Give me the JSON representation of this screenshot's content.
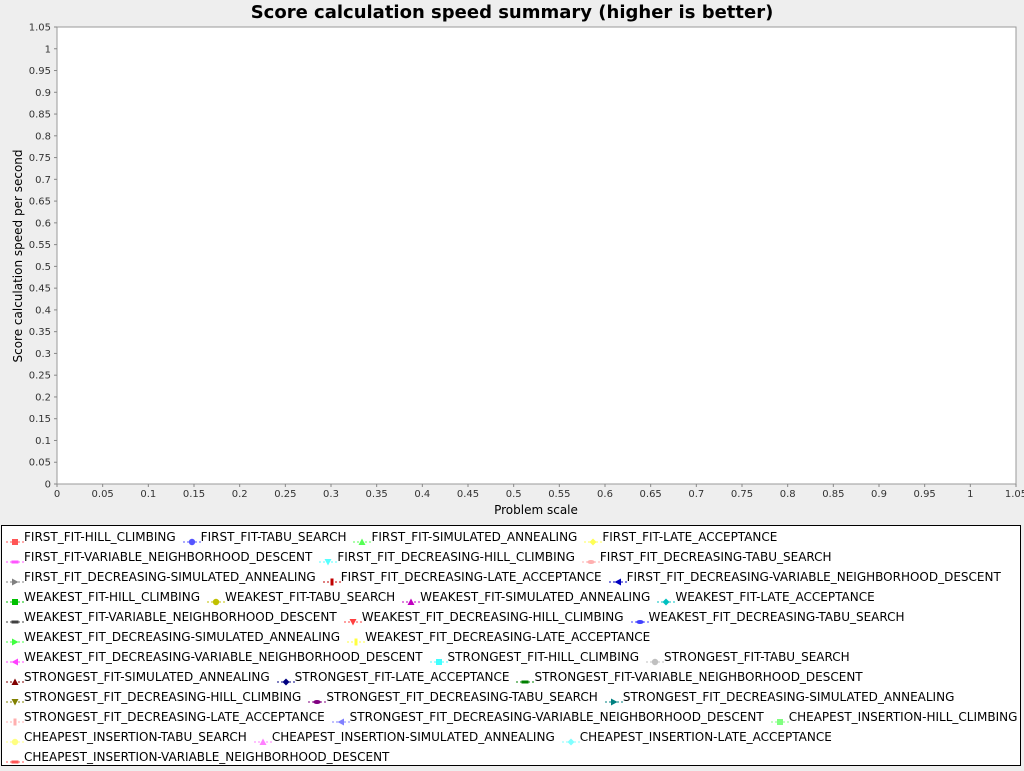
{
  "chart_data": {
    "type": "line",
    "title": "Score calculation speed summary (higher is better)",
    "xlabel": "Problem scale",
    "ylabel": "Score calculation speed per second",
    "xlim": [
      0,
      1.05
    ],
    "ylim": [
      0,
      1.05
    ],
    "x_ticks": [
      "0",
      "0.05",
      "0.1",
      "0.15",
      "0.2",
      "0.25",
      "0.3",
      "0.35",
      "0.4",
      "0.45",
      "0.5",
      "0.55",
      "0.6",
      "0.65",
      "0.7",
      "0.75",
      "0.8",
      "0.85",
      "0.9",
      "0.95",
      "1",
      "1.05"
    ],
    "y_ticks": [
      "0",
      "0.05",
      "0.1",
      "0.15",
      "0.2",
      "0.25",
      "0.3",
      "0.35",
      "0.4",
      "0.45",
      "0.5",
      "0.55",
      "0.6",
      "0.65",
      "0.7",
      "0.75",
      "0.8",
      "0.85",
      "0.9",
      "0.95",
      "1",
      "1.05"
    ],
    "grid": true,
    "legend_position": "bottom",
    "series": [
      {
        "name": "FIRST_FIT-HILL_CLIMBING",
        "color": "#ff5555",
        "marker": "square",
        "values": []
      },
      {
        "name": "FIRST_FIT-TABU_SEARCH",
        "color": "#5555ff",
        "marker": "circle",
        "values": []
      },
      {
        "name": "FIRST_FIT-SIMULATED_ANNEALING",
        "color": "#55ff55",
        "marker": "triangle-up",
        "values": []
      },
      {
        "name": "FIRST_FIT-LATE_ACCEPTANCE",
        "color": "#ffff55",
        "marker": "diamond",
        "values": []
      },
      {
        "name": "FIRST_FIT-VARIABLE_NEIGHBORHOOD_DESCENT",
        "color": "#ff55ff",
        "marker": "rect-h",
        "values": []
      },
      {
        "name": "FIRST_FIT_DECREASING-HILL_CLIMBING",
        "color": "#55ffff",
        "marker": "triangle-down",
        "values": []
      },
      {
        "name": "FIRST_FIT_DECREASING-TABU_SEARCH",
        "color": "#ffafaf",
        "marker": "ellipse",
        "values": []
      },
      {
        "name": "FIRST_FIT_DECREASING-SIMULATED_ANNEALING",
        "color": "#808080",
        "marker": "triangle-right",
        "values": []
      },
      {
        "name": "FIRST_FIT_DECREASING-LATE_ACCEPTANCE",
        "color": "#c00000",
        "marker": "rect-v",
        "values": []
      },
      {
        "name": "FIRST_FIT_DECREASING-VARIABLE_NEIGHBORHOOD_DESCENT",
        "color": "#0000c0",
        "marker": "triangle-left",
        "values": []
      },
      {
        "name": "WEAKEST_FIT-HILL_CLIMBING",
        "color": "#00c000",
        "marker": "square",
        "values": []
      },
      {
        "name": "WEAKEST_FIT-TABU_SEARCH",
        "color": "#c0c000",
        "marker": "circle",
        "values": []
      },
      {
        "name": "WEAKEST_FIT-SIMULATED_ANNEALING",
        "color": "#c000c0",
        "marker": "triangle-up",
        "values": []
      },
      {
        "name": "WEAKEST_FIT-LATE_ACCEPTANCE",
        "color": "#00c0c0",
        "marker": "diamond",
        "values": []
      },
      {
        "name": "WEAKEST_FIT-VARIABLE_NEIGHBORHOOD_DESCENT",
        "color": "#404040",
        "marker": "rect-h",
        "values": []
      },
      {
        "name": "WEAKEST_FIT_DECREASING-HILL_CLIMBING",
        "color": "#ff4040",
        "marker": "triangle-down",
        "values": []
      },
      {
        "name": "WEAKEST_FIT_DECREASING-TABU_SEARCH",
        "color": "#4040ff",
        "marker": "ellipse",
        "values": []
      },
      {
        "name": "WEAKEST_FIT_DECREASING-SIMULATED_ANNEALING",
        "color": "#40ff40",
        "marker": "triangle-right",
        "values": []
      },
      {
        "name": "WEAKEST_FIT_DECREASING-LATE_ACCEPTANCE",
        "color": "#ffff40",
        "marker": "rect-v",
        "values": []
      },
      {
        "name": "WEAKEST_FIT_DECREASING-VARIABLE_NEIGHBORHOOD_DESCENT",
        "color": "#ff40ff",
        "marker": "triangle-left",
        "values": []
      },
      {
        "name": "STRONGEST_FIT-HILL_CLIMBING",
        "color": "#40ffff",
        "marker": "square",
        "values": []
      },
      {
        "name": "STRONGEST_FIT-TABU_SEARCH",
        "color": "#c0c0c0",
        "marker": "circle",
        "values": []
      },
      {
        "name": "STRONGEST_FIT-SIMULATED_ANNEALING",
        "color": "#800000",
        "marker": "triangle-up",
        "values": []
      },
      {
        "name": "STRONGEST_FIT-LATE_ACCEPTANCE",
        "color": "#000080",
        "marker": "diamond",
        "values": []
      },
      {
        "name": "STRONGEST_FIT-VARIABLE_NEIGHBORHOOD_DESCENT",
        "color": "#008000",
        "marker": "rect-h",
        "values": []
      },
      {
        "name": "STRONGEST_FIT_DECREASING-HILL_CLIMBING",
        "color": "#808000",
        "marker": "triangle-down",
        "values": []
      },
      {
        "name": "STRONGEST_FIT_DECREASING-TABU_SEARCH",
        "color": "#800080",
        "marker": "ellipse",
        "values": []
      },
      {
        "name": "STRONGEST_FIT_DECREASING-SIMULATED_ANNEALING",
        "color": "#008080",
        "marker": "triangle-right",
        "values": []
      },
      {
        "name": "STRONGEST_FIT_DECREASING-LATE_ACCEPTANCE",
        "color": "#ffafaf",
        "marker": "rect-v",
        "values": []
      },
      {
        "name": "STRONGEST_FIT_DECREASING-VARIABLE_NEIGHBORHOOD_DESCENT",
        "color": "#8080ff",
        "marker": "triangle-left",
        "values": []
      },
      {
        "name": "CHEAPEST_INSERTION-HILL_CLIMBING",
        "color": "#80ff80",
        "marker": "square",
        "values": []
      },
      {
        "name": "CHEAPEST_INSERTION-TABU_SEARCH",
        "color": "#ffff80",
        "marker": "circle",
        "values": []
      },
      {
        "name": "CHEAPEST_INSERTION-SIMULATED_ANNEALING",
        "color": "#ff80ff",
        "marker": "triangle-up",
        "values": []
      },
      {
        "name": "CHEAPEST_INSERTION-LATE_ACCEPTANCE",
        "color": "#80ffff",
        "marker": "diamond",
        "values": []
      },
      {
        "name": "CHEAPEST_INSERTION-VARIABLE_NEIGHBORHOOD_DESCENT",
        "color": "#ff5555",
        "marker": "rect-h",
        "values": []
      }
    ]
  }
}
